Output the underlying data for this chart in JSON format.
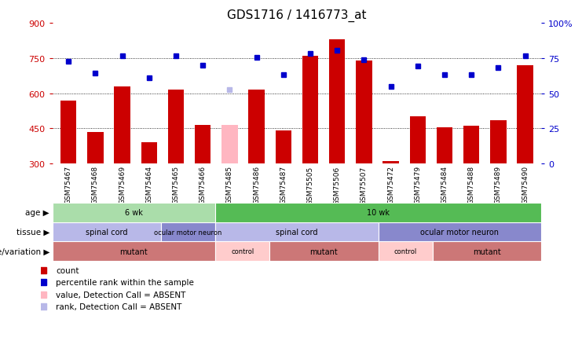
{
  "title": "GDS1716 / 1416773_at",
  "samples": [
    "GSM75467",
    "GSM75468",
    "GSM75469",
    "GSM75464",
    "GSM75465",
    "GSM75466",
    "GSM75485",
    "GSM75486",
    "GSM75487",
    "GSM75505",
    "GSM75506",
    "GSM75507",
    "GSM75472",
    "GSM75479",
    "GSM75484",
    "GSM75488",
    "GSM75489",
    "GSM75490"
  ],
  "bar_values": [
    570,
    435,
    630,
    390,
    615,
    465,
    465,
    615,
    440,
    760,
    830,
    740,
    310,
    500,
    455,
    460,
    485,
    720
  ],
  "bar_colors": [
    "#cc0000",
    "#cc0000",
    "#cc0000",
    "#cc0000",
    "#cc0000",
    "#cc0000",
    "#ffb6c1",
    "#cc0000",
    "#cc0000",
    "#cc0000",
    "#cc0000",
    "#cc0000",
    "#cc0000",
    "#cc0000",
    "#cc0000",
    "#cc0000",
    "#cc0000",
    "#cc0000"
  ],
  "dot_values": [
    735,
    685,
    760,
    665,
    760,
    720,
    615,
    755,
    680,
    770,
    785,
    745,
    630,
    715,
    680,
    680,
    710,
    760
  ],
  "dot_colors": [
    "#0000cc",
    "#0000cc",
    "#0000cc",
    "#0000cc",
    "#0000cc",
    "#0000cc",
    "#b8b8e8",
    "#0000cc",
    "#0000cc",
    "#0000cc",
    "#0000cc",
    "#0000cc",
    "#0000cc",
    "#0000cc",
    "#0000cc",
    "#0000cc",
    "#0000cc",
    "#0000cc"
  ],
  "ymin": 300,
  "ymax": 900,
  "yticks": [
    300,
    450,
    600,
    750,
    900
  ],
  "yticks_right": [
    0,
    25,
    50,
    75,
    100
  ],
  "ytick_labels_right": [
    "0",
    "25",
    "50",
    "75",
    "100%"
  ],
  "grid_values": [
    450,
    600,
    750
  ],
  "bar_color_normal": "#cc0000",
  "bar_color_absent": "#ffb6c1",
  "dot_color_normal": "#0000cc",
  "dot_color_absent": "#b8b8e8",
  "age_groups": [
    {
      "label": "6 wk",
      "start": 0,
      "end": 6,
      "color": "#aaddaa"
    },
    {
      "label": "10 wk",
      "start": 6,
      "end": 18,
      "color": "#55bb55"
    }
  ],
  "tissue_groups": [
    {
      "label": "spinal cord",
      "start": 0,
      "end": 4,
      "color": "#b8b8e8"
    },
    {
      "label": "ocular motor neuron",
      "start": 4,
      "end": 6,
      "color": "#8888cc"
    },
    {
      "label": "spinal cord",
      "start": 6,
      "end": 12,
      "color": "#b8b8e8"
    },
    {
      "label": "ocular motor neuron",
      "start": 12,
      "end": 18,
      "color": "#8888cc"
    }
  ],
  "geno_groups": [
    {
      "label": "mutant",
      "start": 0,
      "end": 6,
      "color": "#cc7777"
    },
    {
      "label": "control",
      "start": 6,
      "end": 8,
      "color": "#ffcccc"
    },
    {
      "label": "mutant",
      "start": 8,
      "end": 12,
      "color": "#cc7777"
    },
    {
      "label": "control",
      "start": 12,
      "end": 14,
      "color": "#ffcccc"
    },
    {
      "label": "mutant",
      "start": 14,
      "end": 18,
      "color": "#cc7777"
    }
  ],
  "legend_items": [
    {
      "label": "count",
      "color": "#cc0000"
    },
    {
      "label": "percentile rank within the sample",
      "color": "#0000cc"
    },
    {
      "label": "value, Detection Call = ABSENT",
      "color": "#ffb6c1"
    },
    {
      "label": "rank, Detection Call = ABSENT",
      "color": "#b8b8e8"
    }
  ],
  "row_labels": [
    "age",
    "tissue",
    "genotype/variation"
  ],
  "tick_bg_color": "#cccccc",
  "plot_bg_color": "#ffffff",
  "left_axis_color": "#cc0000",
  "right_axis_color": "#0000cc"
}
